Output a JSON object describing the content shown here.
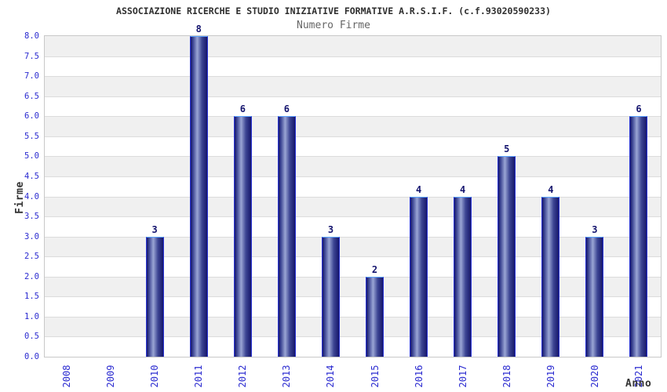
{
  "title": "ASSOCIAZIONE RICERCHE E STUDIO INIZIATIVE FORMATIVE A.R.S.I.F. (c.f.93020590233)",
  "subtitle": "Numero Firme",
  "chart_data": {
    "type": "bar",
    "title": "ASSOCIAZIONE RICERCHE E STUDIO INIZIATIVE FORMATIVE A.R.S.I.F. (c.f.93020590233)",
    "subtitle": "Numero Firme",
    "xlabel": "Anno",
    "ylabel": "Firme",
    "categories": [
      "2008",
      "2009",
      "2010",
      "2011",
      "2012",
      "2013",
      "2014",
      "2015",
      "2016",
      "2017",
      "2018",
      "2019",
      "2020",
      "2021"
    ],
    "values": [
      0,
      0,
      3,
      8,
      6,
      6,
      3,
      2,
      4,
      4,
      5,
      4,
      3,
      6
    ],
    "ylim": [
      0,
      8
    ],
    "ytick_step": 0.5,
    "ytick_labels": [
      "0.0",
      "0.5",
      "1.0",
      "1.5",
      "2.0",
      "2.5",
      "3.0",
      "3.5",
      "4.0",
      "4.5",
      "5.0",
      "5.5",
      "6.0",
      "6.5",
      "7.0",
      "7.5",
      "8.0"
    ],
    "grid": "horizontal-bands-alternating-0.5",
    "legend": "none",
    "value_labels_shown": true,
    "colors": {
      "axis_tick_label": "#2b2bd0",
      "value_label": "#14146e",
      "bar_dark": "#16166a",
      "bar_mid": "#3d4694",
      "bar_light": "#9aa5d4",
      "bar_border": "#2a35d6",
      "bar_top_border": "#5aa2ff",
      "band_gray": "#f0f0f0",
      "band_white": "#ffffff",
      "grid_line": "#dcdcdc",
      "plot_border": "#c8c8c8",
      "title_color": "#2e2e2e",
      "subtitle_color": "#666666",
      "axis_title_color": "#333333"
    }
  }
}
